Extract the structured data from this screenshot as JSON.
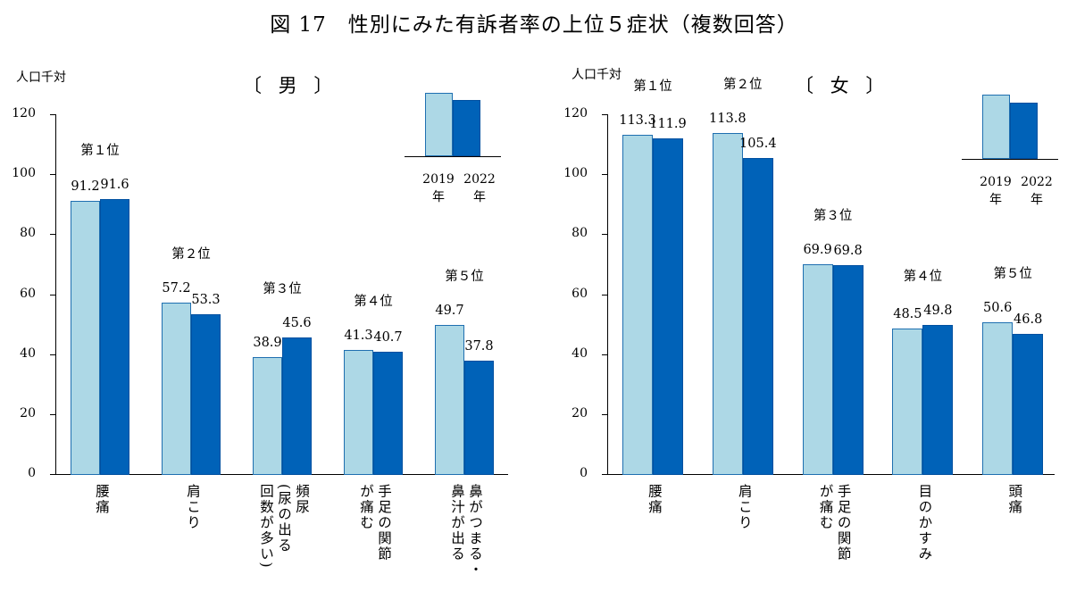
{
  "title": "図 17　性別にみた有訴者率の上位５症状（複数回答）",
  "colors": {
    "2019": "#add8e6",
    "2022": "#0062b8"
  },
  "legend": [
    "2019\n年",
    "2022\n年"
  ],
  "chart_data": [
    {
      "type": "bar",
      "panel_title": "〔 男 〕",
      "ylabel": "人口千対",
      "ylim": [
        0,
        120
      ],
      "yticks": [
        0,
        20,
        40,
        60,
        80,
        100,
        120
      ],
      "categories": [
        "腰痛",
        "肩こり",
        "頻尿\n(尿の出る\n回数が多い)",
        "手足の関節\nが痛む",
        "鼻がつまる・\n鼻汁が出る"
      ],
      "ranks": [
        "第１位",
        "第２位",
        "第３位",
        "第４位",
        "第５位"
      ],
      "series": [
        {
          "name": "2019年",
          "values": [
            91.2,
            57.2,
            38.9,
            41.3,
            49.7
          ]
        },
        {
          "name": "2022年",
          "values": [
            91.6,
            53.3,
            45.6,
            40.7,
            37.8
          ]
        }
      ]
    },
    {
      "type": "bar",
      "panel_title": "〔 女 〕",
      "ylabel": "人口千対",
      "ylim": [
        0,
        120
      ],
      "yticks": [
        0,
        20,
        40,
        60,
        80,
        100,
        120
      ],
      "categories": [
        "腰痛",
        "肩こり",
        "手足の関節\nが痛む",
        "目のかすみ",
        "頭痛"
      ],
      "ranks": [
        "第１位",
        "第２位",
        "第３位",
        "第４位",
        "第５位"
      ],
      "series": [
        {
          "name": "2019年",
          "values": [
            113.3,
            113.8,
            69.9,
            48.5,
            50.6
          ]
        },
        {
          "name": "2022年",
          "values": [
            111.9,
            105.4,
            69.8,
            49.8,
            46.8
          ]
        }
      ]
    }
  ]
}
